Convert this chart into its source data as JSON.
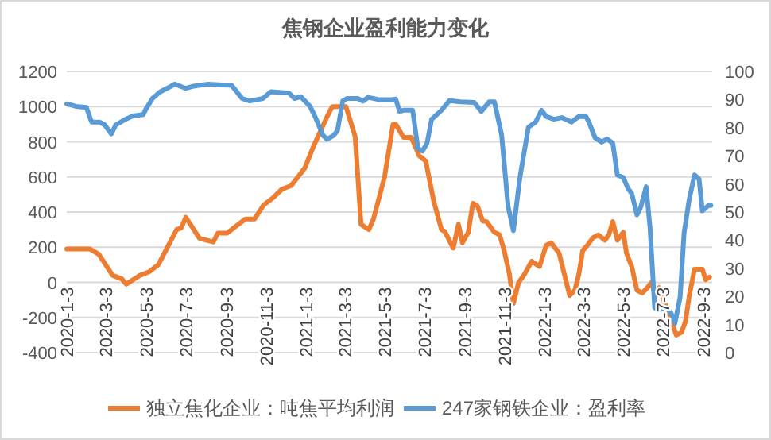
{
  "chart_data": {
    "type": "line",
    "title": "焦钢企业盈利能力变化",
    "legend": "bottom",
    "grid": "y",
    "marker": "none",
    "line_style": "solid",
    "xlim": [
      "2020-01-03",
      "2022-09-16"
    ],
    "xticks": [
      {
        "value": "2020-01-03",
        "label": "2020-1-3"
      },
      {
        "value": "2020-03-03",
        "label": "2020-3-3"
      },
      {
        "value": "2020-05-03",
        "label": "2020-5-3"
      },
      {
        "value": "2020-07-03",
        "label": "2020-7-3"
      },
      {
        "value": "2020-09-03",
        "label": "2020-9-3"
      },
      {
        "value": "2020-11-03",
        "label": "2020-11-3"
      },
      {
        "value": "2021-01-03",
        "label": "2021-1-3"
      },
      {
        "value": "2021-03-03",
        "label": "2021-3-3"
      },
      {
        "value": "2021-05-03",
        "label": "2021-5-3"
      },
      {
        "value": "2021-07-03",
        "label": "2021-7-3"
      },
      {
        "value": "2021-09-03",
        "label": "2021-9-3"
      },
      {
        "value": "2021-11-03",
        "label": "2021-11-3"
      },
      {
        "value": "2022-01-03",
        "label": "2022-1-3"
      },
      {
        "value": "2022-03-03",
        "label": "2022-3-3"
      },
      {
        "value": "2022-05-03",
        "label": "2022-5-3"
      },
      {
        "value": "2022-07-03",
        "label": "2022-7-3"
      },
      {
        "value": "2022-09-03",
        "label": "2022-9-3"
      }
    ],
    "ylim": [
      -400,
      1200
    ],
    "yticks": [
      -400,
      -200,
      0,
      200,
      400,
      600,
      800,
      1000,
      1200
    ],
    "y2lim": [
      0,
      100
    ],
    "y2ticks": [
      0,
      10,
      20,
      30,
      40,
      50,
      60,
      70,
      80,
      90,
      100
    ],
    "series": [
      {
        "name": "独立焦化企业：吨焦平均利润",
        "color": "#ed7d31",
        "x": [
          "2020-01-03",
          "2020-02-07",
          "2020-02-21",
          "2020-03-13",
          "2020-03-27",
          "2020-04-03",
          "2020-04-24",
          "2020-05-08",
          "2020-05-22",
          "2020-06-05",
          "2020-06-19",
          "2020-06-26",
          "2020-07-03",
          "2020-07-24",
          "2020-08-14",
          "2020-08-21",
          "2020-09-04",
          "2020-09-18",
          "2020-10-02",
          "2020-10-16",
          "2020-10-30",
          "2020-11-13",
          "2020-11-27",
          "2020-12-11",
          "2021-01-01",
          "2021-01-15",
          "2021-02-05",
          "2021-02-12",
          "2021-03-05",
          "2021-03-19",
          "2021-03-28",
          "2021-04-09",
          "2021-04-16",
          "2021-05-03",
          "2021-05-16",
          "2021-05-20",
          "2021-06-01",
          "2021-06-13",
          "2021-06-25",
          "2021-07-05",
          "2021-07-17",
          "2021-07-29",
          "2021-08-03",
          "2021-08-16",
          "2021-08-24",
          "2021-08-30",
          "2021-09-08",
          "2021-09-15",
          "2021-09-22",
          "2021-09-30",
          "2021-10-06",
          "2021-10-18",
          "2021-10-26",
          "2021-11-02",
          "2021-11-10",
          "2021-11-16",
          "2021-11-24",
          "2021-12-02",
          "2021-12-14",
          "2021-12-26",
          "2022-01-05",
          "2022-01-13",
          "2022-01-25",
          "2022-02-10",
          "2022-02-18",
          "2022-02-24",
          "2022-03-02",
          "2022-03-09",
          "2022-03-18",
          "2022-03-26",
          "2022-04-05",
          "2022-04-11",
          "2022-04-17",
          "2022-04-24",
          "2022-05-03",
          "2022-05-08",
          "2022-05-16",
          "2022-05-24",
          "2022-06-01",
          "2022-06-09",
          "2022-06-15",
          "2022-06-21",
          "2022-06-27",
          "2022-07-07",
          "2022-07-15",
          "2022-07-23",
          "2022-07-31",
          "2022-08-06",
          "2022-08-12",
          "2022-08-20",
          "2022-09-01",
          "2022-09-06",
          "2022-09-12"
        ],
        "values": [
          190,
          190,
          160,
          40,
          20,
          -10,
          40,
          60,
          100,
          200,
          300,
          310,
          370,
          250,
          230,
          280,
          280,
          320,
          360,
          360,
          440,
          480,
          530,
          550,
          650,
          780,
          950,
          1000,
          1000,
          830,
          330,
          300,
          360,
          600,
          900,
          900,
          825,
          825,
          720,
          690,
          465,
          300,
          290,
          195,
          330,
          225,
          285,
          450,
          435,
          350,
          345,
          285,
          270,
          180,
          45,
          -120,
          0,
          40,
          120,
          90,
          210,
          225,
          165,
          -75,
          -45,
          45,
          180,
          210,
          255,
          270,
          240,
          270,
          345,
          240,
          285,
          165,
          90,
          -45,
          -60,
          -30,
          0,
          -75,
          -30,
          -135,
          -210,
          -300,
          -285,
          -225,
          -75,
          75,
          75,
          15,
          30
        ]
      },
      {
        "name": "247家钢铁企业：盈利率",
        "color": "#5b9bd5",
        "axis": "y2",
        "x": [
          "2020-01-03",
          "2020-01-17",
          "2020-02-02",
          "2020-02-10",
          "2020-02-22",
          "2020-03-01",
          "2020-03-11",
          "2020-03-18",
          "2020-04-01",
          "2020-04-13",
          "2020-04-29",
          "2020-05-03",
          "2020-05-13",
          "2020-05-25",
          "2020-06-06",
          "2020-06-16",
          "2020-06-22",
          "2020-07-03",
          "2020-07-13",
          "2020-08-06",
          "2020-09-03",
          "2020-09-11",
          "2020-09-27",
          "2020-10-09",
          "2020-10-29",
          "2020-11-10",
          "2020-12-08",
          "2020-12-16",
          "2020-12-26",
          "2021-01-09",
          "2021-01-17",
          "2021-01-29",
          "2021-02-04",
          "2021-02-14",
          "2021-02-20",
          "2021-02-28",
          "2021-03-07",
          "2021-03-23",
          "2021-03-31",
          "2021-04-08",
          "2021-04-24",
          "2021-05-14",
          "2021-05-20",
          "2021-05-26",
          "2021-06-01",
          "2021-06-15",
          "2021-06-23",
          "2021-06-30",
          "2021-07-07",
          "2021-07-14",
          "2021-07-29",
          "2021-08-10",
          "2021-08-27",
          "2021-09-17",
          "2021-09-28",
          "2021-10-10",
          "2021-10-18",
          "2021-10-29",
          "2021-11-08",
          "2021-11-16",
          "2021-11-26",
          "2021-12-09",
          "2021-12-20",
          "2021-12-29",
          "2022-01-05",
          "2022-01-17",
          "2022-01-29",
          "2022-02-13",
          "2022-02-24",
          "2022-03-07",
          "2022-03-12",
          "2022-03-21",
          "2022-03-31",
          "2022-04-08",
          "2022-04-17",
          "2022-04-24",
          "2022-05-03",
          "2022-05-10",
          "2022-05-16",
          "2022-05-24",
          "2022-05-30",
          "2022-06-07",
          "2022-06-13",
          "2022-06-20",
          "2022-06-26",
          "2022-07-07",
          "2022-07-15",
          "2022-07-21",
          "2022-07-29",
          "2022-08-04",
          "2022-08-12",
          "2022-08-20",
          "2022-08-27",
          "2022-09-01",
          "2022-09-10",
          "2022-09-14"
        ],
        "values": [
          88.5,
          87.6,
          87.2,
          82,
          82,
          81,
          77.8,
          81,
          82.9,
          84.2,
          84.7,
          86.6,
          90.4,
          92.8,
          94.2,
          95.5,
          95,
          94,
          94.7,
          95.5,
          95.1,
          95.1,
          90.4,
          89.5,
          90.4,
          92.8,
          92.3,
          90.4,
          91,
          87.6,
          83.8,
          77.2,
          75.9,
          77.2,
          79,
          89.5,
          90.4,
          90.4,
          89.5,
          90.8,
          90,
          90,
          90.2,
          85.8,
          86.2,
          86.2,
          72.6,
          71.7,
          74.5,
          83,
          86.2,
          89.6,
          89.2,
          89,
          85.8,
          89.2,
          89.2,
          77.4,
          51.9,
          43.4,
          62.3,
          80.2,
          82,
          86.2,
          84,
          83,
          83.6,
          82,
          84,
          84,
          81.7,
          76.4,
          74.9,
          76,
          74.5,
          63.2,
          62.3,
          58.5,
          56.6,
          49,
          51.9,
          59,
          44.3,
          16,
          15.1,
          16,
          14.2,
          10.4,
          19.8,
          42.5,
          54.7,
          63.2,
          61.7,
          50.4,
          52.3,
          52.3
        ]
      }
    ]
  }
}
